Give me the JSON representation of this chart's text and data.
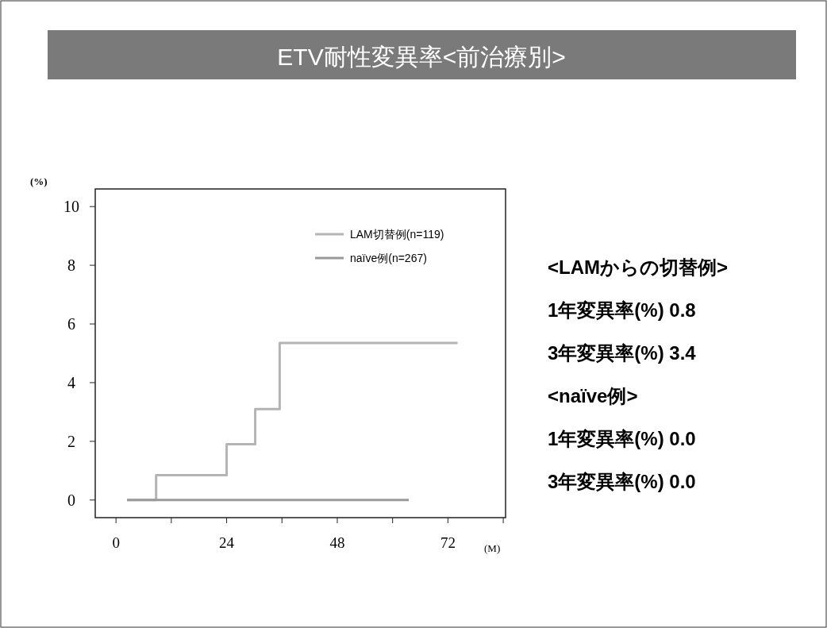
{
  "chart_data": {
    "type": "step",
    "title": "ETV耐性変異率<前治療別>",
    "xlabel": "(M)",
    "ylabel": "(%)",
    "xlim": [
      -4.5,
      84.5
    ],
    "ylim": [
      -0.6,
      10.6
    ],
    "xticks": [
      0,
      {
        "value": 12,
        "label": null
      },
      24,
      {
        "value": 36,
        "label": null
      },
      48,
      {
        "value": 60,
        "label": null
      },
      72,
      {
        "value": 84,
        "label": null
      }
    ],
    "yticks": [
      0,
      2,
      4,
      6,
      8,
      10
    ],
    "series": [
      {
        "name": "LAM切替例(n=119)",
        "color": "#b4b4b4",
        "x": [
          2.4,
          8.7,
          24.0,
          30.2,
          35.5,
          74.1
        ],
        "values": [
          0,
          0.85,
          1.9,
          3.1,
          5.35,
          5.35
        ]
      },
      {
        "name": "naïve例(n=267)",
        "color": "#9a9a9a",
        "x": [
          2.4,
          63.5
        ],
        "values": [
          0,
          0
        ]
      }
    ],
    "legend": "top right",
    "grid": false,
    "annotations": [
      "<LAMからの切替例>",
      "1年変異率(%) 0.8",
      "3年変異率(%) 3.4",
      "<naïve例>",
      "1年変異率(%) 0.0",
      "3年変異率(%) 0.0"
    ]
  }
}
